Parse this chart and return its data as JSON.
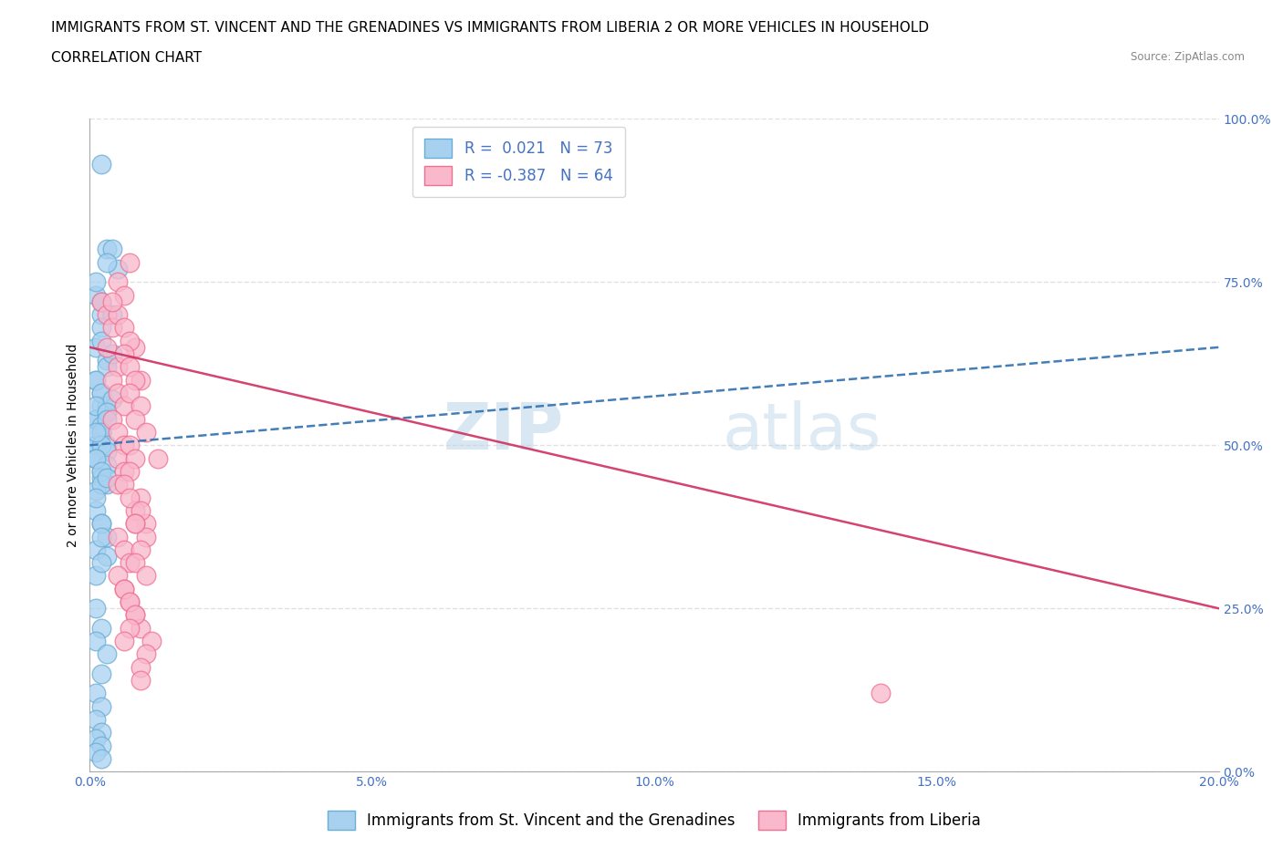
{
  "title_line1": "IMMIGRANTS FROM ST. VINCENT AND THE GRENADINES VS IMMIGRANTS FROM LIBERIA 2 OR MORE VEHICLES IN HOUSEHOLD",
  "title_line2": "CORRELATION CHART",
  "source_text": "Source: ZipAtlas.com",
  "xlabel": "",
  "ylabel": "2 or more Vehicles in Household",
  "xlim": [
    0.0,
    0.2
  ],
  "ylim": [
    0.0,
    1.0
  ],
  "xticks": [
    0.0,
    0.05,
    0.1,
    0.15,
    0.2
  ],
  "xticklabels": [
    "0.0%",
    "5.0%",
    "10.0%",
    "15.0%",
    "20.0%"
  ],
  "yticks": [
    0.0,
    0.25,
    0.5,
    0.75,
    1.0
  ],
  "yticklabels": [
    "0.0%",
    "25.0%",
    "50.0%",
    "75.0%",
    "100.0%"
  ],
  "blue_color": "#a8d1f0",
  "pink_color": "#f9b8cc",
  "blue_edge": "#6aadd5",
  "pink_edge": "#f07090",
  "trend_blue_color": "#3070b0",
  "trend_pink_color": "#d03060",
  "R_blue": 0.021,
  "N_blue": 73,
  "R_pink": -0.387,
  "N_pink": 64,
  "legend_label_blue": "Immigrants from St. Vincent and the Grenadines",
  "legend_label_pink": "Immigrants from Liberia",
  "watermark_zip": "ZIP",
  "watermark_atlas": "atlas",
  "blue_scatter_x": [
    0.002,
    0.003,
    0.001,
    0.005,
    0.002,
    0.004,
    0.001,
    0.003,
    0.002,
    0.004,
    0.001,
    0.002,
    0.003,
    0.002,
    0.001,
    0.003,
    0.002,
    0.001,
    0.004,
    0.002,
    0.001,
    0.003,
    0.002,
    0.001,
    0.003,
    0.002,
    0.001,
    0.004,
    0.002,
    0.003,
    0.001,
    0.002,
    0.003,
    0.001,
    0.002,
    0.003,
    0.001,
    0.002,
    0.001,
    0.003,
    0.002,
    0.001,
    0.003,
    0.002,
    0.001,
    0.003,
    0.002,
    0.001,
    0.002,
    0.003,
    0.001,
    0.002,
    0.001,
    0.003,
    0.002,
    0.001,
    0.002,
    0.003,
    0.001,
    0.002,
    0.001,
    0.002,
    0.001,
    0.003,
    0.002,
    0.001,
    0.002,
    0.001,
    0.002,
    0.001,
    0.002,
    0.001,
    0.002
  ],
  "blue_scatter_y": [
    0.93,
    0.8,
    0.73,
    0.77,
    0.7,
    0.8,
    0.75,
    0.78,
    0.72,
    0.7,
    0.65,
    0.68,
    0.63,
    0.66,
    0.6,
    0.62,
    0.58,
    0.6,
    0.64,
    0.56,
    0.54,
    0.56,
    0.58,
    0.54,
    0.55,
    0.52,
    0.56,
    0.57,
    0.53,
    0.55,
    0.5,
    0.52,
    0.54,
    0.5,
    0.52,
    0.5,
    0.48,
    0.5,
    0.52,
    0.49,
    0.46,
    0.48,
    0.47,
    0.45,
    0.48,
    0.44,
    0.46,
    0.43,
    0.44,
    0.45,
    0.4,
    0.38,
    0.42,
    0.36,
    0.38,
    0.34,
    0.36,
    0.33,
    0.3,
    0.32,
    0.25,
    0.22,
    0.2,
    0.18,
    0.15,
    0.12,
    0.1,
    0.08,
    0.06,
    0.05,
    0.04,
    0.03,
    0.02
  ],
  "pink_scatter_x": [
    0.002,
    0.003,
    0.005,
    0.004,
    0.006,
    0.003,
    0.007,
    0.005,
    0.004,
    0.006,
    0.008,
    0.005,
    0.007,
    0.004,
    0.006,
    0.009,
    0.007,
    0.005,
    0.008,
    0.006,
    0.004,
    0.007,
    0.005,
    0.009,
    0.006,
    0.008,
    0.005,
    0.01,
    0.007,
    0.006,
    0.008,
    0.005,
    0.007,
    0.009,
    0.006,
    0.008,
    0.01,
    0.007,
    0.005,
    0.009,
    0.006,
    0.008,
    0.007,
    0.01,
    0.005,
    0.009,
    0.006,
    0.008,
    0.007,
    0.01,
    0.008,
    0.006,
    0.009,
    0.007,
    0.011,
    0.008,
    0.01,
    0.007,
    0.009,
    0.006,
    0.012,
    0.009,
    0.14,
    0.008
  ],
  "pink_scatter_y": [
    0.72,
    0.7,
    0.75,
    0.68,
    0.73,
    0.65,
    0.78,
    0.7,
    0.72,
    0.68,
    0.65,
    0.62,
    0.66,
    0.6,
    0.64,
    0.6,
    0.62,
    0.58,
    0.6,
    0.56,
    0.54,
    0.58,
    0.52,
    0.56,
    0.5,
    0.54,
    0.48,
    0.52,
    0.5,
    0.46,
    0.48,
    0.44,
    0.46,
    0.42,
    0.44,
    0.4,
    0.38,
    0.42,
    0.36,
    0.4,
    0.34,
    0.38,
    0.32,
    0.36,
    0.3,
    0.34,
    0.28,
    0.32,
    0.26,
    0.3,
    0.24,
    0.28,
    0.22,
    0.26,
    0.2,
    0.24,
    0.18,
    0.22,
    0.16,
    0.2,
    0.48,
    0.14,
    0.12,
    0.38
  ],
  "grid_color": "#dddddd",
  "background_color": "#ffffff",
  "tick_color": "#4472c4",
  "title_fontsize": 11,
  "subtitle_fontsize": 11,
  "axis_label_fontsize": 10,
  "tick_fontsize": 10,
  "legend_fontsize": 12,
  "blue_trend_x0": 0.0,
  "blue_trend_y0": 0.5,
  "blue_trend_x1": 0.2,
  "blue_trend_y1": 0.65,
  "pink_trend_x0": 0.0,
  "pink_trend_y0": 0.65,
  "pink_trend_x1": 0.2,
  "pink_trend_y1": 0.25
}
